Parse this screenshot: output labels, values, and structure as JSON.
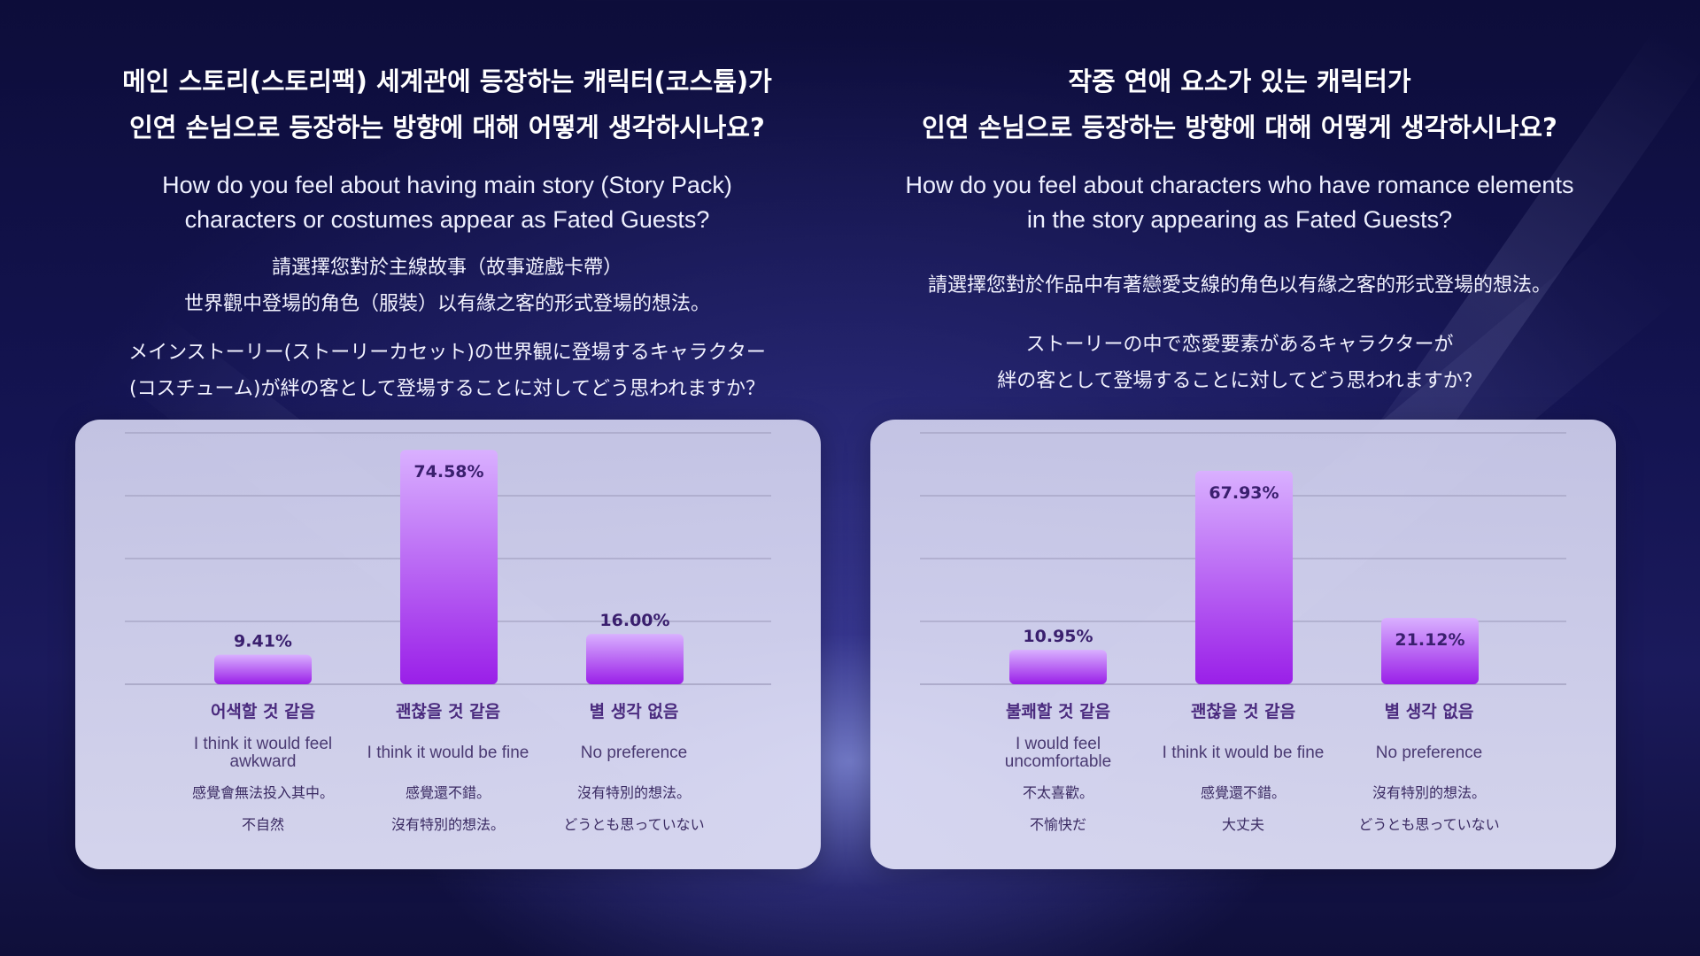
{
  "panels": [
    {
      "title_ko_line1": "메인 스토리(스토리팩) 세계관에 등장하는 캐릭터(코스튬)가",
      "title_ko_line2": "인연 손님으로 등장하는 방향에 대해 어떻게 생각하시나요?",
      "question_en_line1": "How do you feel about having main story (Story Pack)",
      "question_en_line2": "characters or costumes appear as Fated Guests?",
      "question_zh_line1": "請選擇您對於主線故事（故事遊戲卡帶）",
      "question_zh_line2": "世界觀中登場的角色（服裝）以有緣之客的形式登場的想法。",
      "question_ja_line1": "メインストーリー(ストーリーカセット)の世界観に登場するキャラクター",
      "question_ja_line2": "(コスチューム)が絆の客として登場することに対してどう思われますか？",
      "categories": [
        {
          "ko": "어색할 것 같음",
          "en": "I think it would feel awkward",
          "zh": "感覺會無法投入其中。",
          "ja": "不自然"
        },
        {
          "ko": "괜찮을 것 같음",
          "en": "I think it would be fine",
          "zh": "感覺還不錯。",
          "ja": "沒有特別的想法。"
        },
        {
          "ko": "별 생각 없음",
          "en": "No preference",
          "zh": "沒有特別的想法。",
          "ja": "どうとも思っていない"
        }
      ]
    },
    {
      "title_ko_line1": "작중 연애 요소가 있는 캐릭터가",
      "title_ko_line2": "인연 손님으로 등장하는 방향에 대해 어떻게 생각하시나요?",
      "question_en_line1": "How do you feel about characters who have romance elements",
      "question_en_line2": "in the story appearing as Fated Guests?",
      "question_zh_line1": "請選擇您對於作品中有著戀愛支線的角色以有緣之客的形式登場的想法。",
      "question_zh_line2": "",
      "question_ja_line1": "ストーリーの中で恋愛要素があるキャラクターが",
      "question_ja_line2": "絆の客として登場することに対してどう思われますか？",
      "categories": [
        {
          "ko": "불쾌할 것 같음",
          "en": "I would feel uncomfortable",
          "zh": "不太喜歡。",
          "ja": "不愉快だ"
        },
        {
          "ko": "괜찮을 것 같음",
          "en": "I think it would be fine",
          "zh": "感覺還不錯。",
          "ja": "大丈夫"
        },
        {
          "ko": "별 생각 없음",
          "en": "No preference",
          "zh": "沒有特別的想法。",
          "ja": "どうとも思っていない"
        }
      ]
    }
  ],
  "colors": {
    "bar_top": "#d9b0ff",
    "bar_bottom": "#9a1fe8",
    "label": "#3a1f6e",
    "grid": "#9a98b8"
  },
  "chart_data": [
    {
      "type": "bar",
      "categories": [
        "어색할 것 같음",
        "괜찮을 것 같음",
        "별 생각 없음"
      ],
      "values": [
        9.41,
        74.58,
        16.0
      ],
      "value_labels": [
        "9.41%",
        "74.58%",
        "16.00%"
      ],
      "ylim": [
        0,
        80
      ],
      "grid": true,
      "title": "",
      "xlabel": "",
      "ylabel": ""
    },
    {
      "type": "bar",
      "categories": [
        "불쾌할 것 같음",
        "괜찮을 것 같음",
        "별 생각 없음"
      ],
      "values": [
        10.95,
        67.93,
        21.12
      ],
      "value_labels": [
        "10.95%",
        "67.93%",
        "21.12%"
      ],
      "ylim": [
        0,
        80
      ],
      "grid": true,
      "title": "",
      "xlabel": "",
      "ylabel": ""
    }
  ]
}
